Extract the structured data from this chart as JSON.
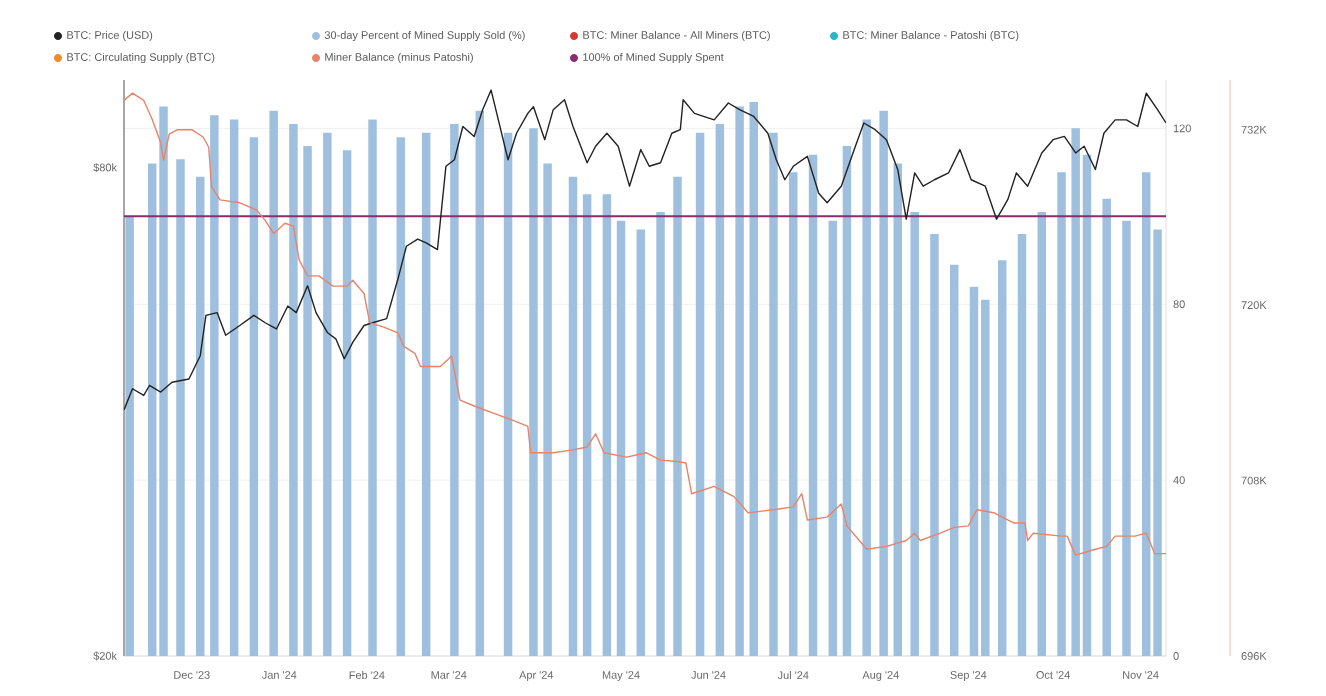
{
  "chart_data": {
    "type": "bar",
    "legend": "top",
    "grid": "y",
    "log": "y2",
    "marker": "none",
    "xlim": [
      "2023-11-07",
      "2024-11-10"
    ],
    "xticks": [
      {
        "value": "2023-12-01",
        "label": "Dec '23"
      },
      {
        "value": "2024-01-01",
        "label": "Jan '24"
      },
      {
        "value": "2024-02-01",
        "label": "Feb '24"
      },
      {
        "value": "2024-03-01",
        "label": "Mar '24"
      },
      {
        "value": "2024-04-01",
        "label": "Apr '24"
      },
      {
        "value": "2024-05-01",
        "label": "May '24"
      },
      {
        "value": "2024-06-01",
        "label": "Jun '24"
      },
      {
        "value": "2024-07-01",
        "label": "Jul '24"
      },
      {
        "value": "2024-08-01",
        "label": "Aug '24"
      },
      {
        "value": "2024-09-01",
        "label": "Sep '24"
      },
      {
        "value": "2024-10-01",
        "label": "Oct '24"
      },
      {
        "value": "2024-11-01",
        "label": "Nov '24"
      }
    ],
    "ylim": [
      0,
      131
    ],
    "yticks": [
      0,
      40,
      80,
      120
    ],
    "y2lim": [
      20000,
      102600
    ],
    "y2ticks": [
      {
        "value": 20000,
        "label": "$20k"
      },
      {
        "value": 80000,
        "label": "$80k"
      }
    ],
    "y3lim": [
      696000,
      735400
    ],
    "y3ticks": [
      {
        "value": 696000,
        "label": "696K"
      },
      {
        "value": 708000,
        "label": "708K"
      },
      {
        "value": 720000,
        "label": "720K"
      },
      {
        "value": 732000,
        "label": "732K"
      }
    ],
    "ref_lines": [
      {
        "axis": "y",
        "value": 100,
        "label": "100% of Mined Supply Spent",
        "color": "#8e2a6e"
      }
    ],
    "series": [
      {
        "name": "BTC: Price (USD)",
        "type": "line",
        "axis": "y2",
        "color": "#222222",
        "x": [
          "2023-11-07",
          "2023-11-10",
          "2023-11-14",
          "2023-11-16",
          "2023-11-20",
          "2023-11-24",
          "2023-11-30",
          "2023-12-04",
          "2023-12-06",
          "2023-12-10",
          "2023-12-13",
          "2023-12-18",
          "2023-12-23",
          "2023-12-27",
          "2023-12-31",
          "2024-01-04",
          "2024-01-07",
          "2024-01-11",
          "2024-01-14",
          "2024-01-18",
          "2024-01-21",
          "2024-01-24",
          "2024-01-27",
          "2024-01-31",
          "2024-02-03",
          "2024-02-08",
          "2024-02-12",
          "2024-02-15",
          "2024-02-19",
          "2024-02-22",
          "2024-02-26",
          "2024-02-29",
          "2024-03-03",
          "2024-03-06",
          "2024-03-10",
          "2024-03-13",
          "2024-03-16",
          "2024-03-18",
          "2024-03-22",
          "2024-03-25",
          "2024-03-29",
          "2024-03-31",
          "2024-04-04",
          "2024-04-07",
          "2024-04-11",
          "2024-04-14",
          "2024-04-19",
          "2024-04-22",
          "2024-04-26",
          "2024-04-30",
          "2024-05-04",
          "2024-05-08",
          "2024-05-11",
          "2024-05-15",
          "2024-05-19",
          "2024-05-22",
          "2024-05-23",
          "2024-05-27",
          "2024-06-03",
          "2024-06-08",
          "2024-06-12",
          "2024-06-17",
          "2024-06-22",
          "2024-06-25",
          "2024-06-28",
          "2024-07-01",
          "2024-07-06",
          "2024-07-10",
          "2024-07-13",
          "2024-07-18",
          "2024-07-23",
          "2024-07-26",
          "2024-07-30",
          "2024-08-03",
          "2024-08-07",
          "2024-08-10",
          "2024-08-13",
          "2024-08-16",
          "2024-08-20",
          "2024-08-25",
          "2024-08-29",
          "2024-09-02",
          "2024-09-07",
          "2024-09-11",
          "2024-09-15",
          "2024-09-18",
          "2024-09-22",
          "2024-09-27",
          "2024-10-01",
          "2024-10-05",
          "2024-10-09",
          "2024-10-12",
          "2024-10-16",
          "2024-10-19",
          "2024-10-23",
          "2024-10-27",
          "2024-10-31",
          "2024-11-03",
          "2024-11-07",
          "2024-11-10"
        ],
        "values": [
          40200,
          42700,
          41900,
          43100,
          42300,
          43500,
          43900,
          46900,
          52600,
          53000,
          49700,
          51100,
          52600,
          51500,
          50600,
          54000,
          53000,
          57200,
          53000,
          50100,
          49200,
          46500,
          48700,
          51100,
          51500,
          52100,
          58300,
          64000,
          65300,
          64600,
          63400,
          80300,
          81800,
          89900,
          87400,
          94300,
          99700,
          93300,
          81800,
          88200,
          93300,
          95100,
          86600,
          94300,
          97000,
          89900,
          81100,
          85000,
          88200,
          85000,
          75900,
          84200,
          80300,
          81100,
          88200,
          89100,
          97000,
          93300,
          91600,
          96100,
          94300,
          92500,
          88200,
          81800,
          77300,
          80300,
          82600,
          74400,
          72400,
          75900,
          85000,
          90800,
          89100,
          86600,
          79600,
          69100,
          78800,
          75900,
          77300,
          78800,
          84200,
          77300,
          75900,
          69100,
          73100,
          78800,
          75900,
          83400,
          86600,
          87400,
          83400,
          85000,
          79600,
          88200,
          91600,
          91600,
          89900,
          98800,
          94300,
          90800
        ]
      },
      {
        "name": "30-day Percent of Mined Supply Sold (%)",
        "axis": "y",
        "color": "#9ec0de",
        "x": [
          "2023-11-09",
          "2023-11-17",
          "2023-11-21",
          "2023-11-27",
          "2023-12-04",
          "2023-12-09",
          "2023-12-16",
          "2023-12-23",
          "2023-12-30",
          "2024-01-06",
          "2024-01-11",
          "2024-01-18",
          "2024-01-25",
          "2024-02-03",
          "2024-02-13",
          "2024-02-22",
          "2024-03-03",
          "2024-03-12",
          "2024-03-22",
          "2024-03-31",
          "2024-04-05",
          "2024-04-14",
          "2024-04-19",
          "2024-04-26",
          "2024-05-01",
          "2024-05-08",
          "2024-05-15",
          "2024-05-21",
          "2024-05-29",
          "2024-06-05",
          "2024-06-12",
          "2024-06-17",
          "2024-06-24",
          "2024-07-01",
          "2024-07-08",
          "2024-07-15",
          "2024-07-20",
          "2024-07-27",
          "2024-08-02",
          "2024-08-07",
          "2024-08-13",
          "2024-08-20",
          "2024-08-27",
          "2024-09-03",
          "2024-09-07",
          "2024-09-13",
          "2024-09-20",
          "2024-09-27",
          "2024-10-04",
          "2024-10-09",
          "2024-10-13",
          "2024-10-20",
          "2024-10-27",
          "2024-11-03",
          "2024-11-07"
        ],
        "values": [
          100,
          112,
          125,
          113,
          109,
          123,
          122,
          118,
          124,
          121,
          116,
          119,
          115,
          122,
          118,
          119,
          121,
          124,
          119,
          120,
          112,
          109,
          105,
          105,
          99,
          97,
          101,
          109,
          119,
          121,
          125,
          126,
          119,
          110,
          114,
          99,
          116,
          122,
          124,
          112,
          101,
          96,
          89,
          84,
          81,
          90,
          96,
          101,
          110,
          120,
          114,
          104,
          99,
          110,
          97
        ]
      },
      {
        "name": "BTC: Miner Balance - All Miners (BTC)",
        "type": "line",
        "axis": "y3",
        "color": "#d63a2f"
      },
      {
        "name": "BTC: Miner Balance - Patoshi (BTC)",
        "type": "line",
        "axis": "y3",
        "color": "#29b6c6"
      },
      {
        "name": "BTC: Circulating Supply (BTC)",
        "type": "line",
        "axis": "y3",
        "color": "#f08a24"
      },
      {
        "name": "Miner Balance (minus Patoshi)",
        "type": "line",
        "axis": "y3",
        "color": "#e8836a",
        "x": [
          "2023-11-07",
          "2023-11-10",
          "2023-11-14",
          "2023-11-17",
          "2023-11-20",
          "2023-11-21",
          "2023-11-23",
          "2023-11-26",
          "2023-12-01",
          "2023-12-05",
          "2023-12-07",
          "2023-12-08",
          "2023-12-11",
          "2023-12-18",
          "2023-12-24",
          "2023-12-27",
          "2023-12-30",
          "2024-01-03",
          "2024-01-06",
          "2024-01-08",
          "2024-01-11",
          "2024-01-15",
          "2024-01-20",
          "2024-01-25",
          "2024-01-27",
          "2024-01-31",
          "2024-02-02",
          "2024-02-07",
          "2024-02-12",
          "2024-02-14",
          "2024-02-18",
          "2024-02-20",
          "2024-02-27",
          "2024-03-02",
          "2024-03-05",
          "2024-03-10",
          "2024-03-17",
          "2024-03-24",
          "2024-03-29",
          "2024-03-30",
          "2024-04-07",
          "2024-04-14",
          "2024-04-19",
          "2024-04-22",
          "2024-04-25",
          "2024-05-03",
          "2024-05-10",
          "2024-05-15",
          "2024-05-21",
          "2024-05-24",
          "2024-05-26",
          "2024-06-03",
          "2024-06-10",
          "2024-06-15",
          "2024-06-24",
          "2024-07-01",
          "2024-07-04",
          "2024-07-06",
          "2024-07-13",
          "2024-07-18",
          "2024-07-20",
          "2024-07-27",
          "2024-08-03",
          "2024-08-10",
          "2024-08-13",
          "2024-08-15",
          "2024-08-22",
          "2024-08-27",
          "2024-09-01",
          "2024-09-04",
          "2024-09-10",
          "2024-09-17",
          "2024-09-21",
          "2024-09-22",
          "2024-09-24",
          "2024-10-04",
          "2024-10-06",
          "2024-10-09",
          "2024-10-16",
          "2024-10-20",
          "2024-10-23",
          "2024-10-30",
          "2024-11-03",
          "2024-11-06",
          "2024-11-10"
        ],
        "values": [
          734000,
          734500,
          734000,
          732700,
          731100,
          729900,
          731700,
          732000,
          732000,
          731500,
          730800,
          728100,
          727200,
          727000,
          726500,
          725800,
          724900,
          725600,
          725400,
          723100,
          722000,
          722000,
          721300,
          721300,
          721700,
          720800,
          718800,
          718500,
          718100,
          717200,
          716700,
          715800,
          715800,
          716500,
          713500,
          713100,
          712600,
          712100,
          711700,
          709900,
          709900,
          710100,
          710300,
          711200,
          709900,
          709600,
          709900,
          709400,
          709300,
          709200,
          707100,
          707600,
          706900,
          705800,
          706000,
          706200,
          707100,
          705300,
          705500,
          706400,
          704900,
          703300,
          703500,
          703900,
          704400,
          703900,
          704400,
          704800,
          704900,
          706000,
          705800,
          705100,
          705100,
          703900,
          704400,
          704200,
          704200,
          702900,
          703300,
          703500,
          704200,
          704200,
          704400,
          703000,
          703000
        ]
      }
    ]
  }
}
